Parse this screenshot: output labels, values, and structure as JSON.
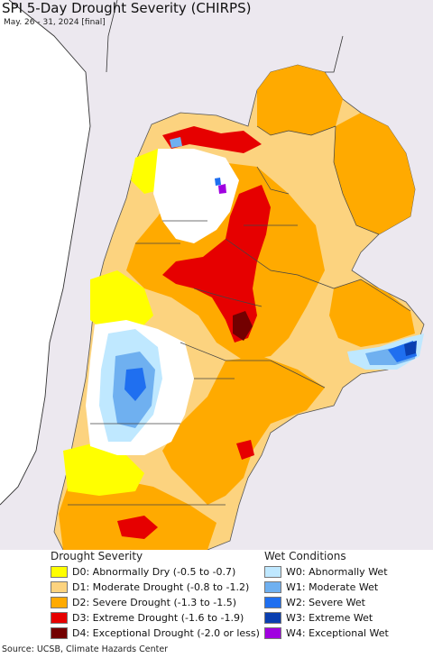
{
  "title": "SPI 5-Day Drought Severity (CHIRPS)",
  "subtitle": "May. 26 - 31, 2024 [final]",
  "legend": {
    "drought_heading": "Drought Severity",
    "wet_heading": "Wet Conditions",
    "drought_items": [
      {
        "label": "D0: Abnormally Dry (-0.5 to -0.7)",
        "color": "#ffff00"
      },
      {
        "label": "D1: Moderate Drought (-0.8 to -1.2)",
        "color": "#fcd37f"
      },
      {
        "label": "D2: Severe Drought (-1.3 to -1.5)",
        "color": "#ffaa00"
      },
      {
        "label": "D3: Extreme Drought (-1.6 to -1.9)",
        "color": "#e60000"
      },
      {
        "label": "D4: Exceptional Drought (-2.0 or less)",
        "color": "#730000"
      }
    ],
    "wet_items": [
      {
        "label": "W0: Abnormally Wet",
        "color": "#bfe8ff"
      },
      {
        "label": "W1: Moderate Wet",
        "color": "#6fb0f0"
      },
      {
        "label": "W2: Severe Wet",
        "color": "#1f6ff0"
      },
      {
        "label": "W3: Extreme Wet",
        "color": "#0a3fb0"
      },
      {
        "label": "W4: Exceptional Wet",
        "color": "#a000e0"
      }
    ]
  },
  "map": {
    "ocean_color": "#ffffff",
    "outside_land_color": "#ece8ef",
    "border_color": "#333333"
  },
  "footer": "Source: UCSB, Climate Hazards Center"
}
